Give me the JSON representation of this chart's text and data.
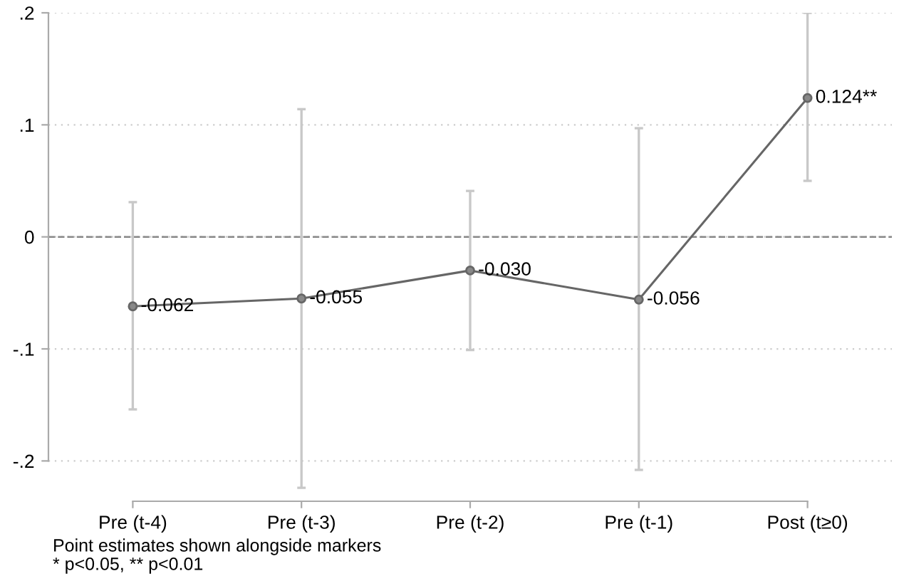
{
  "chart_data": {
    "type": "line",
    "categories": [
      "Pre (t-4)",
      "Pre (t-3)",
      "Pre (t-2)",
      "Pre (t-1)",
      "Post (t≥0)"
    ],
    "series": [
      {
        "color": "#666666",
        "values": [
          -0.062,
          -0.055,
          -0.03,
          -0.056,
          0.124
        ],
        "value_labels": [
          "-0.062",
          "-0.055",
          "-0.030",
          "-0.056",
          "0.124**"
        ],
        "errors": [
          [
            -0.154,
            0.031
          ],
          [
            -0.224,
            0.114
          ],
          [
            -0.101,
            0.041
          ],
          [
            -0.208,
            0.097
          ],
          [
            0.05,
            0.2
          ]
        ]
      }
    ],
    "ylim": [
      -0.236,
      0.2
    ],
    "yticks": [
      {
        "value": -0.2,
        "label": "-.2"
      },
      {
        "value": -0.1,
        "label": "-.1"
      },
      0,
      {
        "value": 0.1,
        "label": ".1"
      },
      {
        "value": 0.2,
        "label": ".2"
      }
    ],
    "ref_lines": [
      {
        "axis": "y",
        "value": 0,
        "color": "#888888",
        "line_style": "dashed"
      }
    ],
    "grid": "y",
    "marker": "circle",
    "line_style": "solid",
    "annotations": [
      "Point estimates shown alongside markers",
      "* p<0.05, ** p<0.01"
    ]
  }
}
